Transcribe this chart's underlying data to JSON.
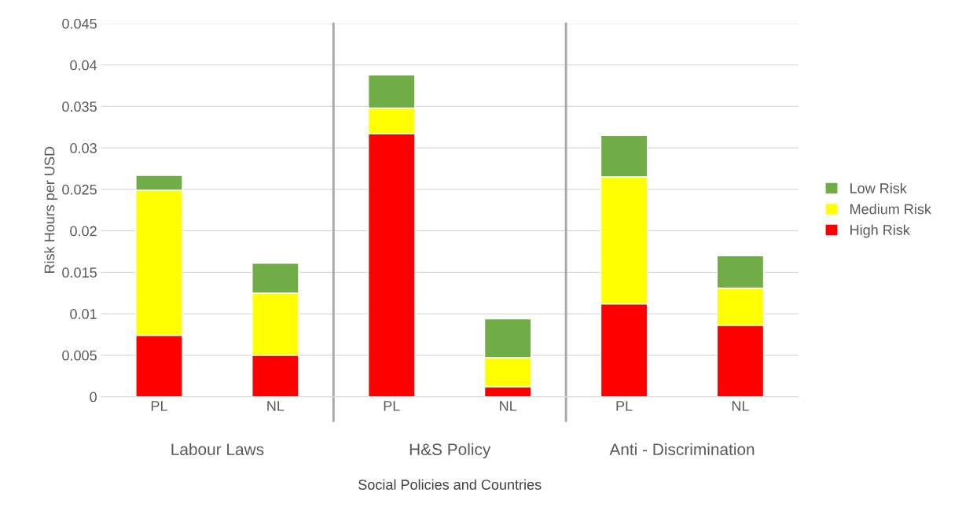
{
  "chart_data": {
    "type": "bar",
    "stacked": true,
    "xlabel": "Social Policies and Countries",
    "ylabel": "Risk Hours per USD",
    "categories": [
      "PL",
      "NL",
      "PL",
      "NL",
      "PL",
      "NL"
    ],
    "series": [
      {
        "name": "High Risk",
        "color": "#ff0000",
        "values": [
          0.0074,
          0.005,
          0.0317,
          0.0012,
          0.0112,
          0.0086
        ]
      },
      {
        "name": "Medium Risk",
        "color": "#ffff00",
        "values": [
          0.0175,
          0.0075,
          0.0031,
          0.0035,
          0.0153,
          0.0045
        ]
      },
      {
        "name": "Low Risk",
        "color": "#70ad47",
        "values": [
          0.0018,
          0.0036,
          0.004,
          0.0047,
          0.005,
          0.0039
        ]
      }
    ],
    "annotations": [
      "Labour Laws",
      "H&S Policy",
      "Anti - Discrimination"
    ],
    "ylim": [
      0,
      0.045
    ],
    "yticks": [
      0,
      0.005,
      0.01,
      0.015,
      0.02,
      0.025,
      0.03,
      0.035,
      0.04,
      0.045
    ],
    "grid": "y",
    "legend": "right"
  }
}
